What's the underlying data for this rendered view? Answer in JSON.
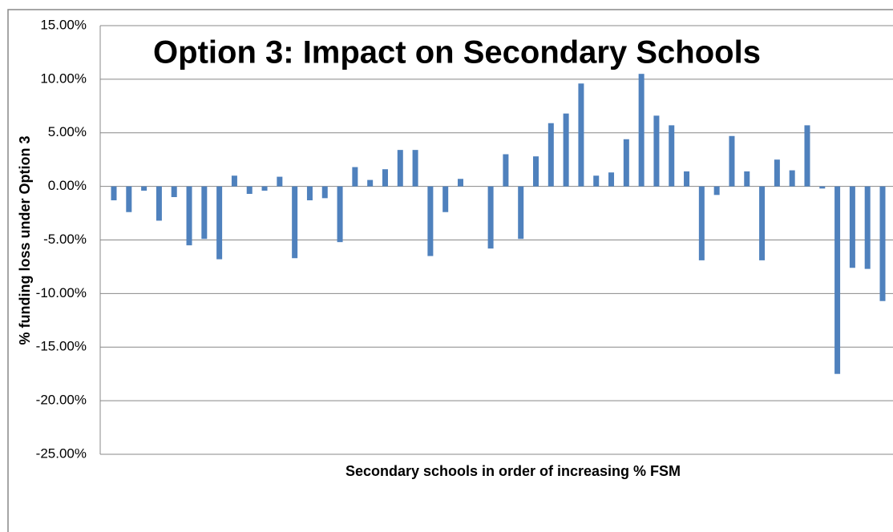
{
  "chart_data": {
    "type": "bar",
    "title": "Option 3: Impact on Secondary Schools",
    "x_label": "Secondary schools in order of increasing % FSM",
    "y_label": "% funding loss under Option 3",
    "color": "#4f81bd",
    "values": [
      -1.3,
      -2.4,
      -0.4,
      -3.2,
      -1.0,
      -5.5,
      -4.9,
      -6.8,
      1.0,
      -0.7,
      -0.4,
      0.9,
      -6.7,
      -1.3,
      -1.1,
      -5.2,
      1.8,
      0.6,
      1.6,
      3.4,
      3.4,
      -6.5,
      -2.4,
      0.7,
      0,
      -5.8,
      3.0,
      -4.9,
      2.8,
      5.9,
      6.8,
      9.6,
      1.0,
      1.3,
      4.4,
      10.5,
      6.6,
      5.7,
      1.4,
      -6.9,
      -0.8,
      4.7,
      1.4,
      -6.9,
      2.5,
      1.5,
      5.7,
      -0.2,
      -17.5,
      -7.6,
      -7.7,
      -10.7
    ],
    "ylim": [
      -25,
      15
    ],
    "yticks": [
      {
        "value": -25,
        "label": "-25.00%"
      },
      {
        "value": -20,
        "label": "-20.00%"
      },
      {
        "value": -15,
        "label": "-15.00%"
      },
      {
        "value": -10,
        "label": "-10.00%"
      },
      {
        "value": -5,
        "label": "-5.00%"
      },
      {
        "value": 0,
        "label": "0.00%"
      },
      {
        "value": 5,
        "label": "5.00%"
      },
      {
        "value": 10,
        "label": "10.00%"
      },
      {
        "value": 15,
        "label": "15.00%"
      }
    ],
    "grid": true
  }
}
